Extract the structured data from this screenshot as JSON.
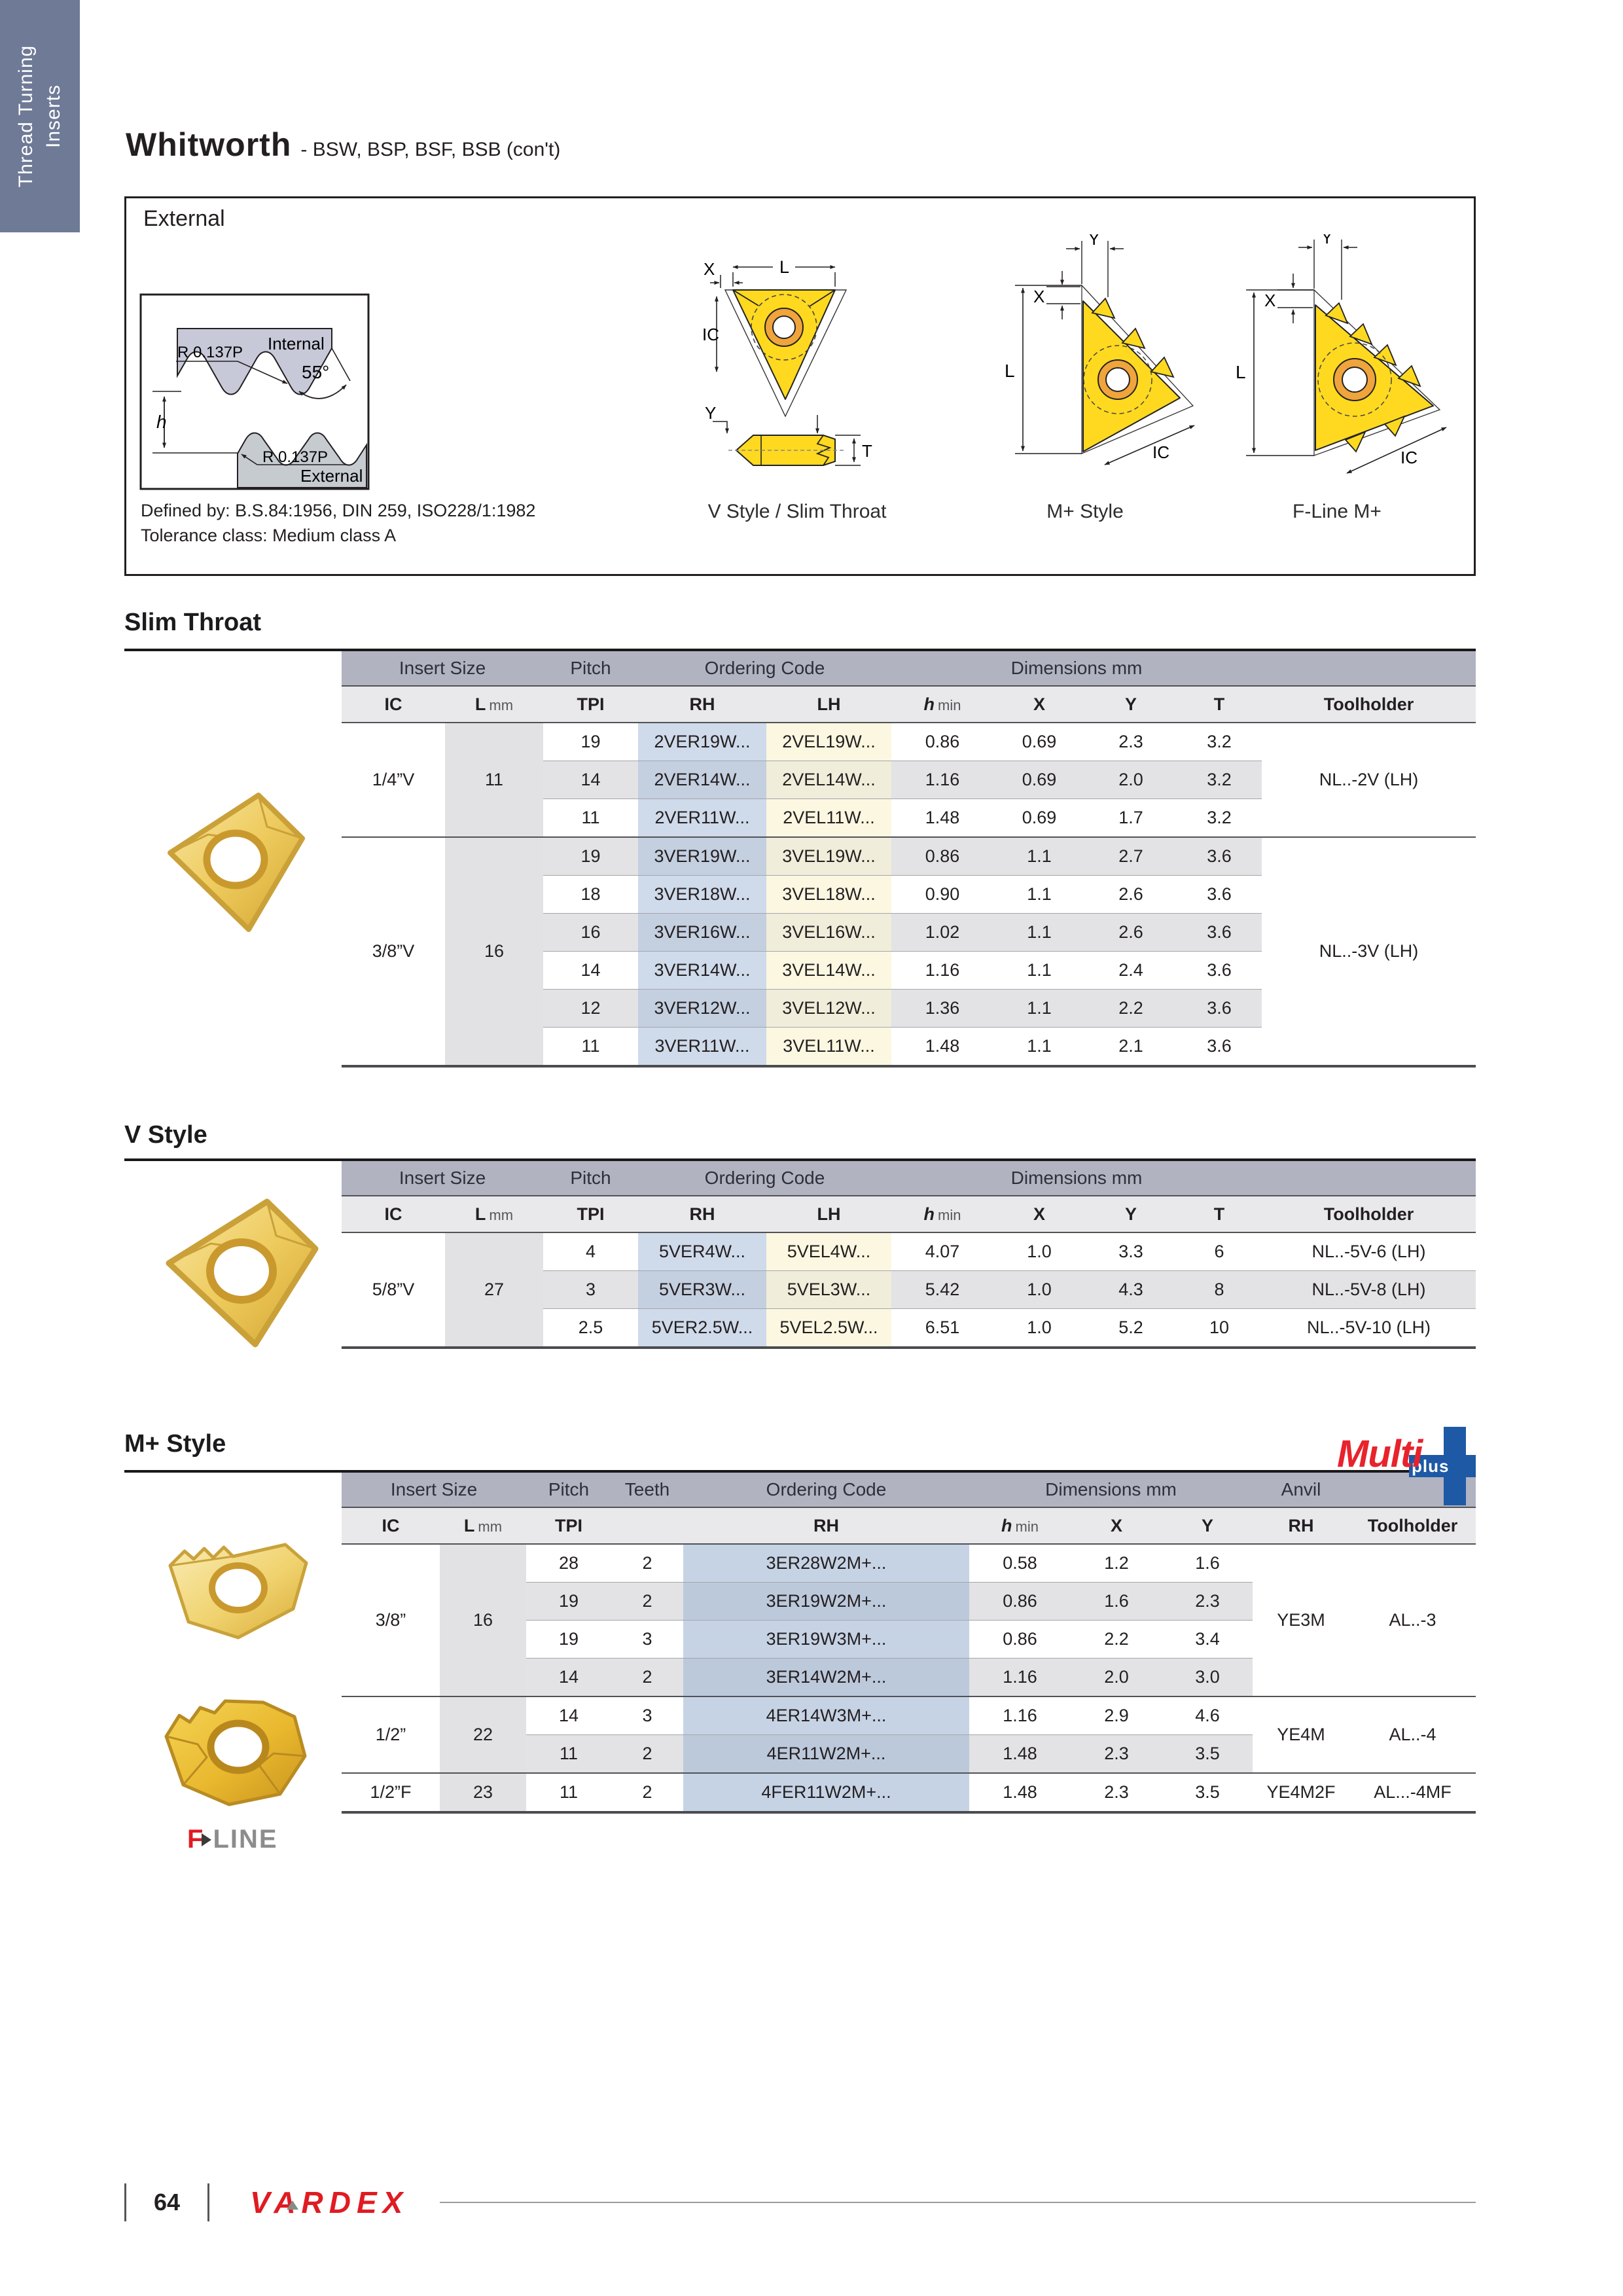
{
  "sidebar": {
    "line1": "Thread Turning",
    "line2": "Inserts"
  },
  "header": {
    "title": "Whitworth",
    "subtitle": "- BSW, BSP, BSF, BSB (con't)"
  },
  "external_box": {
    "label": "External",
    "profile": {
      "radius_top": "R 0.137P",
      "internal": "Internal",
      "angle": "55°",
      "height": "h",
      "radius_bottom": "R 0.137P",
      "external": "External"
    },
    "defined_by": "Defined by: B.S.84:1956, DIN 259, ISO228/1:1982",
    "tolerance": "Tolerance class: Medium class A",
    "dims": {
      "x": "X",
      "l": "L",
      "ic": "IC",
      "y": "Y",
      "t": "T"
    },
    "diagram_captions": [
      "V Style / Slim Throat",
      "M+ Style",
      "F-Line M+"
    ]
  },
  "slim_throat": {
    "title": "Slim Throat",
    "table": {
      "group_headers": [
        {
          "label": "Insert Size",
          "span": 2
        },
        {
          "label": "Pitch",
          "span": 1
        },
        {
          "label": "Ordering Code",
          "span": 2
        },
        {
          "label": "Dimensions mm",
          "span": 4
        },
        {
          "label": "",
          "span": 1
        }
      ],
      "col_headers": [
        "IC",
        "L mm",
        "TPI",
        "RH",
        "LH",
        "h min",
        "X",
        "Y",
        "T",
        "Toolholder"
      ],
      "groups": [
        {
          "ic": "1/4”V",
          "l": "11",
          "toolholder": "NL..-2V (LH)",
          "rows": [
            {
              "tpi": "19",
              "rh": "2VER19W...",
              "lh": "2VEL19W...",
              "hmin": "0.86",
              "x": "0.69",
              "y": "2.3",
              "t": "3.2"
            },
            {
              "tpi": "14",
              "rh": "2VER14W...",
              "lh": "2VEL14W...",
              "hmin": "1.16",
              "x": "0.69",
              "y": "2.0",
              "t": "3.2"
            },
            {
              "tpi": "11",
              "rh": "2VER11W...",
              "lh": "2VEL11W...",
              "hmin": "1.48",
              "x": "0.69",
              "y": "1.7",
              "t": "3.2"
            }
          ]
        },
        {
          "ic": "3/8”V",
          "l": "16",
          "toolholder": "NL..-3V (LH)",
          "rows": [
            {
              "tpi": "19",
              "rh": "3VER19W...",
              "lh": "3VEL19W...",
              "hmin": "0.86",
              "x": "1.1",
              "y": "2.7",
              "t": "3.6"
            },
            {
              "tpi": "18",
              "rh": "3VER18W...",
              "lh": "3VEL18W...",
              "hmin": "0.90",
              "x": "1.1",
              "y": "2.6",
              "t": "3.6"
            },
            {
              "tpi": "16",
              "rh": "3VER16W...",
              "lh": "3VEL16W...",
              "hmin": "1.02",
              "x": "1.1",
              "y": "2.6",
              "t": "3.6"
            },
            {
              "tpi": "14",
              "rh": "3VER14W...",
              "lh": "3VEL14W...",
              "hmin": "1.16",
              "x": "1.1",
              "y": "2.4",
              "t": "3.6"
            },
            {
              "tpi": "12",
              "rh": "3VER12W...",
              "lh": "3VEL12W...",
              "hmin": "1.36",
              "x": "1.1",
              "y": "2.2",
              "t": "3.6"
            },
            {
              "tpi": "11",
              "rh": "3VER11W...",
              "lh": "3VEL11W...",
              "hmin": "1.48",
              "x": "1.1",
              "y": "2.1",
              "t": "3.6"
            }
          ]
        }
      ]
    }
  },
  "v_style": {
    "title": "V Style",
    "table": {
      "group_headers": [
        {
          "label": "Insert Size",
          "span": 2
        },
        {
          "label": "Pitch",
          "span": 1
        },
        {
          "label": "Ordering Code",
          "span": 2
        },
        {
          "label": "Dimensions mm",
          "span": 4
        },
        {
          "label": "",
          "span": 1
        }
      ],
      "col_headers": [
        "IC",
        "L mm",
        "TPI",
        "RH",
        "LH",
        "h min",
        "X",
        "Y",
        "T",
        "Toolholder"
      ],
      "groups": [
        {
          "ic": "5/8”V",
          "l": "27",
          "rows": [
            {
              "tpi": "4",
              "rh": "5VER4W...",
              "lh": "5VEL4W...",
              "hmin": "4.07",
              "x": "1.0",
              "y": "3.3",
              "t": "6",
              "toolholder": "NL..-5V-6 (LH)"
            },
            {
              "tpi": "3",
              "rh": "5VER3W...",
              "lh": "5VEL3W...",
              "hmin": "5.42",
              "x": "1.0",
              "y": "4.3",
              "t": "8",
              "toolholder": "NL..-5V-8 (LH)"
            },
            {
              "tpi": "2.5",
              "rh": "5VER2.5W...",
              "lh": "5VEL2.5W...",
              "hmin": "6.51",
              "x": "1.0",
              "y": "5.2",
              "t": "10",
              "toolholder": "NL..-5V-10 (LH)"
            }
          ]
        }
      ]
    }
  },
  "m_style": {
    "title": "M+ Style",
    "logo": {
      "multi": "Multi",
      "plus": "plus"
    },
    "fline": {
      "f": "F",
      "line": "LINE"
    },
    "table": {
      "group_headers": [
        {
          "label": "Insert Size",
          "span": 2
        },
        {
          "label": "Pitch",
          "span": 1
        },
        {
          "label": "Teeth",
          "span": 1
        },
        {
          "label": "Ordering Code",
          "span": 1
        },
        {
          "label": "Dimensions mm",
          "span": 3
        },
        {
          "label": "Anvil",
          "span": 1
        },
        {
          "label": "",
          "span": 1
        }
      ],
      "col_headers": [
        "IC",
        "L mm",
        "TPI",
        "",
        "RH",
        "h min",
        "X",
        "Y",
        "RH",
        "Toolholder"
      ],
      "groups": [
        {
          "ic": "3/8”",
          "l": "16",
          "anvil": "YE3M",
          "toolholder": "AL..-3",
          "rows": [
            {
              "tpi": "28",
              "teeth": "2",
              "rh": "3ER28W2M+...",
              "hmin": "0.58",
              "x": "1.2",
              "y": "1.6"
            },
            {
              "tpi": "19",
              "teeth": "2",
              "rh": "3ER19W2M+...",
              "hmin": "0.86",
              "x": "1.6",
              "y": "2.3"
            },
            {
              "tpi": "19",
              "teeth": "3",
              "rh": "3ER19W3M+...",
              "hmin": "0.86",
              "x": "2.2",
              "y": "3.4"
            },
            {
              "tpi": "14",
              "teeth": "2",
              "rh": "3ER14W2M+...",
              "hmin": "1.16",
              "x": "2.0",
              "y": "3.0"
            }
          ]
        },
        {
          "ic": "1/2”",
          "l": "22",
          "anvil": "YE4M",
          "toolholder": "AL..-4",
          "rows": [
            {
              "tpi": "14",
              "teeth": "3",
              "rh": "4ER14W3M+...",
              "hmin": "1.16",
              "x": "2.9",
              "y": "4.6"
            },
            {
              "tpi": "11",
              "teeth": "2",
              "rh": "4ER11W2M+...",
              "hmin": "1.48",
              "x": "2.3",
              "y": "3.5"
            }
          ]
        },
        {
          "ic": "1/2”F",
          "l": "23",
          "anvil": "YE4M2F",
          "toolholder": "AL...-4MF",
          "rows": [
            {
              "tpi": "11",
              "teeth": "2",
              "rh": "4FER11W2M+...",
              "hmin": "1.48",
              "x": "2.3",
              "y": "3.5"
            }
          ]
        }
      ]
    }
  },
  "footer": {
    "page": "64",
    "brand": "VARDEX"
  }
}
